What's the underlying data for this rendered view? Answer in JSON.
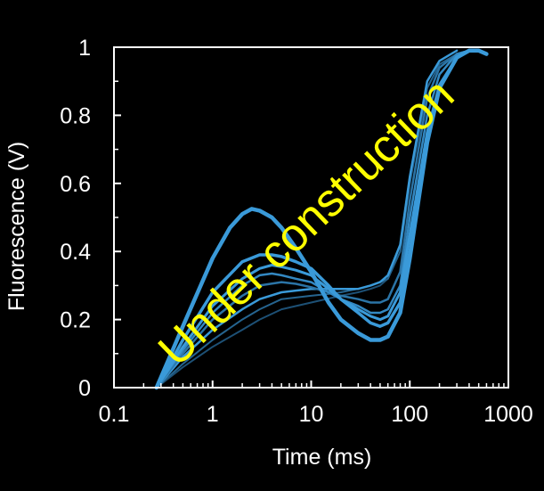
{
  "chart_data": {
    "type": "line",
    "title": "",
    "xlabel": "Time (ms)",
    "ylabel": "Fluorescence (V)",
    "xscale": "log",
    "xlim": [
      0.1,
      1000
    ],
    "ylim": [
      0,
      1
    ],
    "xticks": [
      0.1,
      1,
      10,
      100,
      1000
    ],
    "xtick_labels": [
      "0.1",
      "1",
      "10",
      "100",
      "1000"
    ],
    "yticks": [
      0,
      0.2,
      0.4,
      0.6,
      0.8,
      1
    ],
    "ytick_labels": [
      "0",
      "0.2",
      "0.4",
      "0.6",
      "0.8",
      "1"
    ],
    "grid": false,
    "legend": "none",
    "background_color": "#000000",
    "axis_color": "#ffffff",
    "watermark": {
      "text": "Under construction",
      "color": "#ffff00"
    },
    "series": [
      {
        "color": "#3a9ad9",
        "width": 4.5,
        "x": [
          0.27,
          0.5,
          1,
          1.5,
          2,
          2.5,
          3,
          4,
          5,
          7,
          10,
          15,
          20,
          30,
          40,
          50,
          60,
          80,
          100,
          150,
          200,
          300,
          400,
          500,
          600
        ],
        "y": [
          0,
          0.18,
          0.38,
          0.47,
          0.51,
          0.525,
          0.52,
          0.5,
          0.47,
          0.41,
          0.34,
          0.25,
          0.2,
          0.16,
          0.14,
          0.14,
          0.15,
          0.22,
          0.38,
          0.72,
          0.88,
          0.97,
          0.99,
          0.99,
          0.98
        ]
      },
      {
        "color": "#3a9ad9",
        "width": 3.5,
        "x": [
          0.27,
          0.5,
          1,
          2,
          3,
          4,
          5,
          7,
          10,
          15,
          20,
          30,
          40,
          50,
          60,
          80,
          100,
          150,
          200,
          300,
          400,
          500,
          600
        ],
        "y": [
          0,
          0.14,
          0.28,
          0.37,
          0.39,
          0.39,
          0.385,
          0.37,
          0.35,
          0.3,
          0.26,
          0.22,
          0.19,
          0.18,
          0.19,
          0.25,
          0.4,
          0.72,
          0.88,
          0.97,
          0.99,
          0.99,
          0.98
        ]
      },
      {
        "color": "#3a9ad9",
        "width": 3,
        "x": [
          0.27,
          0.5,
          1,
          2,
          3,
          4,
          5,
          7,
          10,
          15,
          20,
          30,
          40,
          50,
          60,
          80,
          100,
          150,
          200,
          300,
          400,
          500
        ],
        "y": [
          0,
          0.12,
          0.24,
          0.32,
          0.35,
          0.36,
          0.355,
          0.345,
          0.33,
          0.29,
          0.26,
          0.23,
          0.21,
          0.2,
          0.21,
          0.28,
          0.45,
          0.75,
          0.89,
          0.97,
          0.99,
          0.99
        ]
      },
      {
        "color": "#3388c2",
        "width": 2.5,
        "x": [
          0.27,
          0.5,
          1,
          2,
          3,
          4,
          5,
          7,
          10,
          15,
          20,
          30,
          40,
          50,
          60,
          80,
          100,
          150,
          200,
          300,
          400
        ],
        "y": [
          0,
          0.11,
          0.22,
          0.3,
          0.33,
          0.335,
          0.33,
          0.32,
          0.31,
          0.28,
          0.26,
          0.24,
          0.22,
          0.22,
          0.23,
          0.3,
          0.5,
          0.8,
          0.92,
          0.98,
          0.99
        ]
      },
      {
        "color": "#2b74a6",
        "width": 2.5,
        "x": [
          0.27,
          0.5,
          1,
          2,
          3,
          5,
          7,
          10,
          15,
          20,
          30,
          40,
          50,
          60,
          80,
          100,
          150,
          200,
          300,
          400
        ],
        "y": [
          0,
          0.1,
          0.2,
          0.27,
          0.3,
          0.31,
          0.305,
          0.295,
          0.28,
          0.27,
          0.26,
          0.25,
          0.25,
          0.26,
          0.34,
          0.55,
          0.85,
          0.94,
          0.98,
          0.99
        ]
      },
      {
        "color": "#3a9ad9",
        "width": 2.5,
        "x": [
          0.27,
          0.5,
          1,
          2,
          3,
          5,
          7,
          10,
          15,
          20,
          30,
          40,
          50,
          60,
          80,
          100,
          150,
          200,
          300
        ],
        "y": [
          0,
          0.09,
          0.17,
          0.23,
          0.26,
          0.28,
          0.285,
          0.29,
          0.29,
          0.29,
          0.29,
          0.3,
          0.31,
          0.33,
          0.42,
          0.62,
          0.9,
          0.96,
          0.99
        ]
      },
      {
        "color": "#25648f",
        "width": 2,
        "x": [
          0.27,
          0.5,
          1,
          2,
          3,
          5,
          10,
          15,
          20,
          30,
          40,
          50,
          60,
          80,
          100,
          150,
          200,
          300
        ],
        "y": [
          0,
          0.07,
          0.14,
          0.2,
          0.23,
          0.26,
          0.27,
          0.275,
          0.28,
          0.29,
          0.3,
          0.31,
          0.32,
          0.4,
          0.6,
          0.88,
          0.95,
          0.98
        ]
      },
      {
        "color": "#1d5075",
        "width": 2,
        "x": [
          0.27,
          0.5,
          1,
          2,
          3,
          5,
          10,
          20,
          30,
          40,
          50,
          60,
          80,
          100,
          150,
          200
        ],
        "y": [
          0,
          0.06,
          0.12,
          0.17,
          0.2,
          0.23,
          0.25,
          0.27,
          0.28,
          0.29,
          0.3,
          0.32,
          0.42,
          0.62,
          0.88,
          0.95
        ]
      }
    ]
  }
}
